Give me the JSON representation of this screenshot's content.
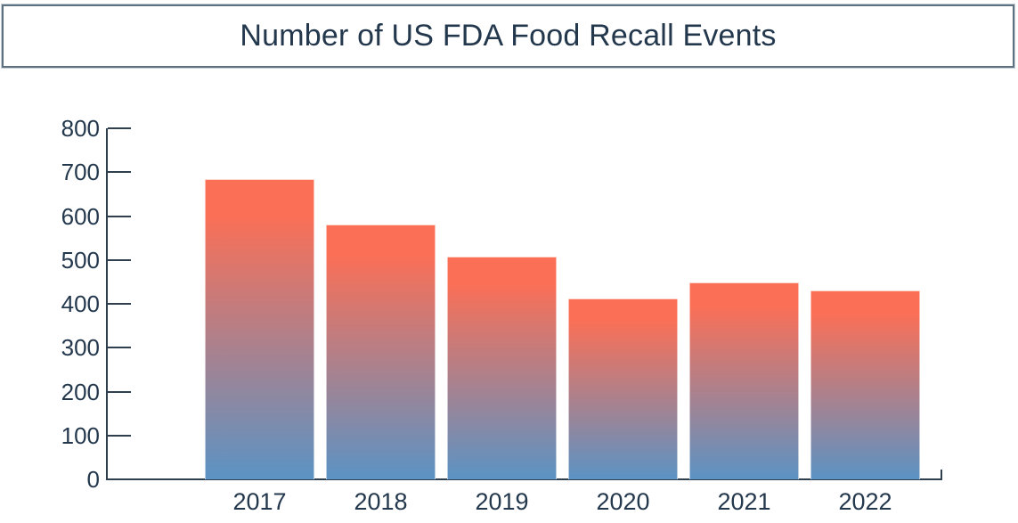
{
  "title": {
    "text": "Number of US FDA Food Recall Events"
  },
  "chart_data": {
    "type": "bar",
    "title": "Number of US FDA Food Recall Events",
    "categories": [
      "2017",
      "2018",
      "2019",
      "2020",
      "2021",
      "2022"
    ],
    "values": [
      685,
      580,
      508,
      412,
      448,
      431
    ],
    "xlabel": "",
    "ylabel": "",
    "ylim": [
      0,
      800
    ],
    "yticks": [
      0,
      100,
      200,
      300,
      400,
      500,
      600,
      700,
      800
    ],
    "grid": false,
    "legend": false,
    "colors": {
      "bar_gradient_top": "#fb6f56",
      "bar_gradient_bottom": "#5b93c4",
      "axis": "#2f3f4d",
      "text": "#24384d",
      "title_border": "#5e7181"
    }
  }
}
